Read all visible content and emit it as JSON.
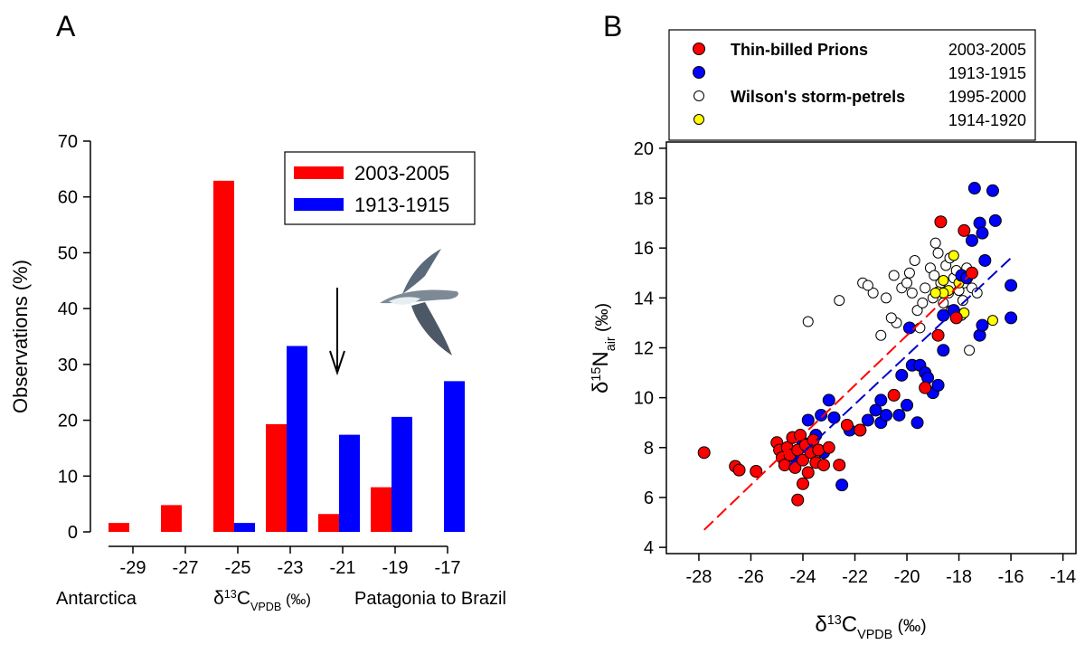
{
  "chart_data": [
    {
      "type": "bar",
      "title": "A",
      "categories": [
        "-29",
        "-27",
        "-25",
        "-23",
        "-21",
        "-19",
        "-17"
      ],
      "series": [
        {
          "name": "2003-2005",
          "color": "#ff0000",
          "values": [
            1.6,
            4.8,
            62.9,
            19.3,
            3.2,
            8.0,
            0
          ]
        },
        {
          "name": "1913-1915",
          "color": "#0000ff",
          "values": [
            0,
            0,
            1.6,
            33.3,
            17.4,
            20.6,
            27.0
          ]
        }
      ],
      "ylim": [
        0,
        70
      ],
      "yticks": [
        0,
        10,
        20,
        30,
        40,
        50,
        60,
        70
      ],
      "ylabel": "Observations (%)",
      "xlabel": [
        "δ",
        "13",
        "C",
        "VPDB",
        " (‰)"
      ],
      "annotations": [
        "Antarctica",
        "Patagonia to Brazil"
      ]
    },
    {
      "type": "scatter",
      "title": "B",
      "series": [
        {
          "group": "Thin-billed Prions",
          "name": "2003-2005",
          "color": "#ff0000",
          "x": [
            -27.8,
            -26.6,
            -26.45,
            -25.8,
            -25,
            -24.9,
            -24.8,
            -24.7,
            -24.6,
            -24.5,
            -24.4,
            -24.3,
            -24.2,
            -24.1,
            -24,
            -23.9,
            -23.8,
            -23.7,
            -23.6,
            -23.5,
            -23.4,
            -23.2,
            -23,
            -24.2,
            -24,
            -22.6,
            -22.3,
            -20.5,
            -19.3,
            -18.8,
            -18.7,
            -17.8,
            -17.5,
            -18.1,
            -21.8
          ],
          "values": [
            7.8,
            7.25,
            7.1,
            7.05,
            8.2,
            7.9,
            7.6,
            7.3,
            8,
            7.7,
            8.4,
            7.2,
            7.9,
            8.5,
            7.5,
            8.1,
            7,
            7.8,
            8.3,
            7.4,
            7.9,
            7.3,
            8,
            5.9,
            6.55,
            7.3,
            8.9,
            10.1,
            10.4,
            12.5,
            17.05,
            16.7,
            15,
            13.2,
            8.7
          ]
        },
        {
          "name": "1913-1915",
          "color": "#0000ff",
          "x": [
            -24.4,
            -24,
            -23.8,
            -23.5,
            -23.3,
            -23,
            -22.8,
            -22.5,
            -22.2,
            -21.8,
            -21.5,
            -21.2,
            -21,
            -21,
            -20.8,
            -20.3,
            -20,
            -20.2,
            -19.9,
            -19.8,
            -19.6,
            -19.5,
            -19.3,
            -19.2,
            -19,
            -18.8,
            -18.6,
            -18.6,
            -18.2,
            -17.9,
            -17.5,
            -17.4,
            -17.2,
            -17.1,
            -17,
            -16.7,
            -16.6,
            -16,
            -16,
            -17.2,
            -17.1,
            -17.7,
            -23.2,
            -24.3
          ],
          "values": [
            8.4,
            8.2,
            9.1,
            8.5,
            9.3,
            9.9,
            9.2,
            6.5,
            8.7,
            8.7,
            9.1,
            9.5,
            9.9,
            9,
            9.3,
            9.3,
            9.7,
            10.9,
            12.8,
            11.3,
            9,
            11.3,
            11,
            10.8,
            10.2,
            10.5,
            11.9,
            13.3,
            13.5,
            14.9,
            16.3,
            18.4,
            17,
            16.6,
            15.5,
            18.3,
            17.1,
            14.5,
            13.2,
            12.5,
            12.9,
            14.8,
            7.8,
            7.6
          ]
        },
        {
          "group": "Wilson's storm-petrels",
          "name": "1995-2000",
          "color": "#ffffff",
          "x": [
            -23.8,
            -22.6,
            -21.7,
            -21.3,
            -20.8,
            -20.5,
            -20.4,
            -20.2,
            -20,
            -19.8,
            -19.7,
            -19.6,
            -19.5,
            -19.3,
            -19.1,
            -19,
            -18.9,
            -18.8,
            -18.7,
            -18.6,
            -18.5,
            -18.4,
            -18.3,
            -18.2,
            -18.1,
            -18,
            -17.9,
            -17.8,
            -17.7,
            -17.6,
            -17.5,
            -17.3,
            -21,
            -20.6,
            -19.4,
            -18.95,
            -17.85,
            -18.35,
            -21.5,
            -19.9
          ],
          "values": [
            13.05,
            13.9,
            14.6,
            14.2,
            14,
            14.9,
            13,
            14.4,
            14.6,
            14.2,
            15.5,
            13.5,
            12.8,
            14.4,
            15.2,
            14,
            16.2,
            15.8,
            14.6,
            13.8,
            15.3,
            14.2,
            13.5,
            14.8,
            15.1,
            14.3,
            13.3,
            14.6,
            15.2,
            11.9,
            14.4,
            14.2,
            12.5,
            13.2,
            13.8,
            14.9,
            13.9,
            15.6,
            14.5,
            15
          ]
        },
        {
          "name": "1914-1920",
          "color": "#ffff00",
          "x": [
            -18.8,
            -18.6,
            -18.4,
            -18.2,
            -18,
            -17.8,
            -18.6,
            -16.7,
            -18.9
          ],
          "values": [
            14.25,
            14.7,
            14.3,
            15.7,
            14.6,
            13.4,
            14.2,
            13.1,
            14.2
          ]
        }
      ],
      "fits": [
        {
          "color": "#ff0000",
          "x": [
            -27.8,
            -17.5
          ],
          "values": [
            4.7,
            15.0
          ]
        },
        {
          "color": "#0000cc",
          "x": [
            -24.5,
            -16
          ],
          "values": [
            7.3,
            15.6
          ]
        }
      ],
      "xlim": [
        -29.25,
        -13.5
      ],
      "xticks": [
        -28,
        -26,
        -24,
        -22,
        -20,
        -18,
        -16,
        -14
      ],
      "ylim": [
        3.75,
        20.25
      ],
      "yticks": [
        4,
        6,
        8,
        10,
        12,
        14,
        16,
        18,
        20
      ],
      "xlabel": [
        "δ",
        "13",
        "C",
        "VPDB",
        " (‰)"
      ],
      "ylabel": [
        "δ",
        "15",
        "N",
        "air",
        " (‰)"
      ]
    }
  ]
}
